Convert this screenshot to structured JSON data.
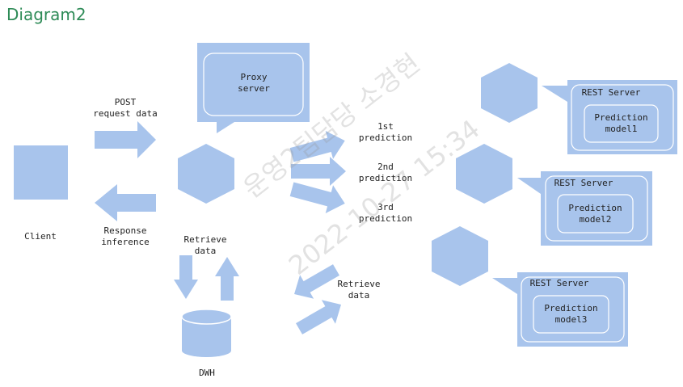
{
  "title": "Diagram2",
  "colors": {
    "fill": "#a8c4ec",
    "stroke": "#ffffff",
    "text": "#222222",
    "title": "#2e8b57"
  },
  "labels": {
    "client": "Client",
    "post": "POST\nrequest data",
    "response": "Response\ninference",
    "proxy": "Proxy\nserver",
    "retrieve_left": "Retrieve\ndata",
    "dwh": "DWH",
    "pred1": "1st\nprediction",
    "pred2": "2nd\nprediction",
    "pred3": "3rd\nprediction",
    "retrieve_right": "Retrieve\ndata"
  },
  "servers": [
    {
      "title": "REST Server",
      "model": "Prediction\nmodel1"
    },
    {
      "title": "REST Server",
      "model": "Prediction\nmodel2"
    },
    {
      "title": "REST Server",
      "model": "Prediction\nmodel3"
    }
  ],
  "watermark": {
    "line1": "운영2팀담당 소경현",
    "line2": "2022-10-27 15:34"
  }
}
